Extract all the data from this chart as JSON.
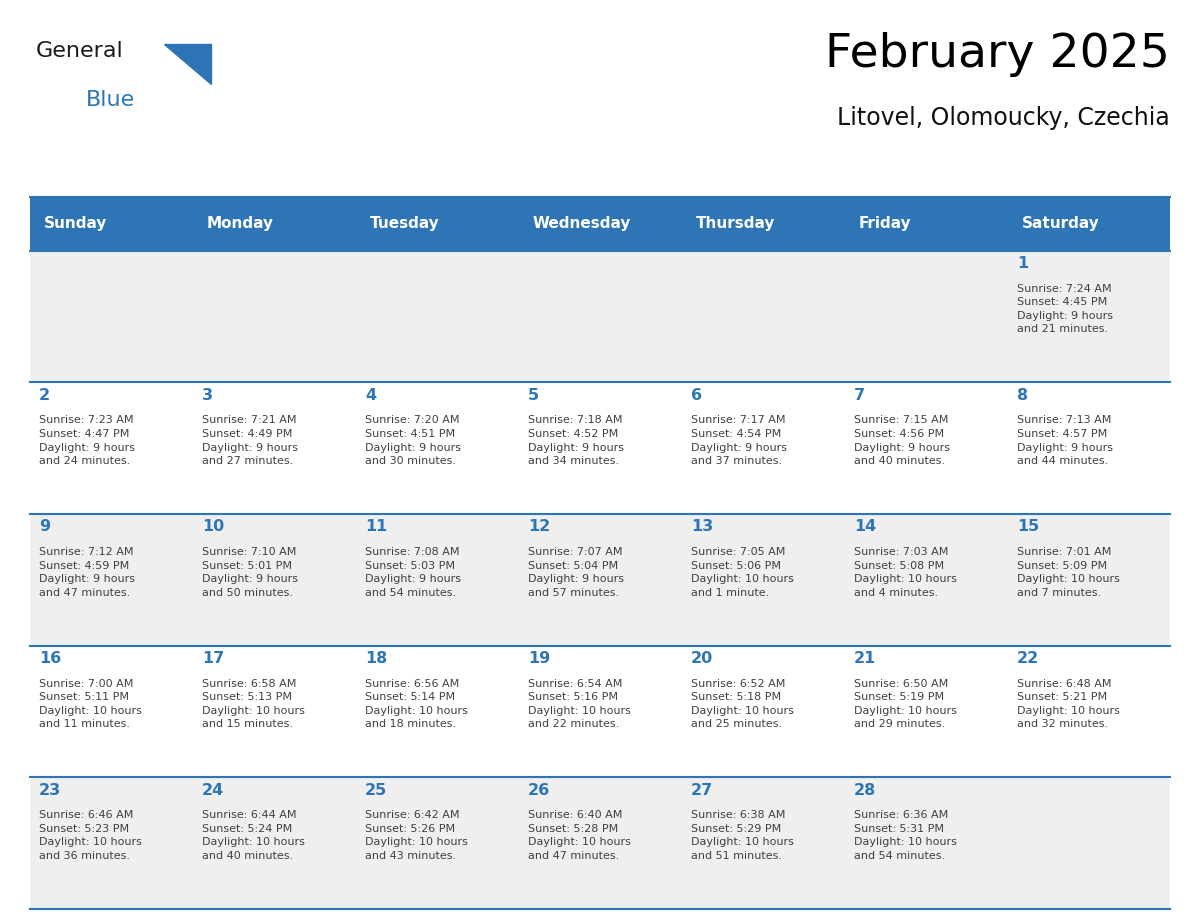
{
  "title": "February 2025",
  "subtitle": "Litovel, Olomoucky, Czechia",
  "header_bg": "#2E75B6",
  "header_text_color": "#FFFFFF",
  "row_bg_odd": "#EFEFEF",
  "row_bg_even": "#FFFFFF",
  "cell_border_color": "#2E75B6",
  "day_number_color": "#2E75B6",
  "info_text_color": "#404040",
  "days_of_week": [
    "Sunday",
    "Monday",
    "Tuesday",
    "Wednesday",
    "Thursday",
    "Friday",
    "Saturday"
  ],
  "weeks": [
    [
      {
        "day": "",
        "info": ""
      },
      {
        "day": "",
        "info": ""
      },
      {
        "day": "",
        "info": ""
      },
      {
        "day": "",
        "info": ""
      },
      {
        "day": "",
        "info": ""
      },
      {
        "day": "",
        "info": ""
      },
      {
        "day": "1",
        "info": "Sunrise: 7:24 AM\nSunset: 4:45 PM\nDaylight: 9 hours\nand 21 minutes."
      }
    ],
    [
      {
        "day": "2",
        "info": "Sunrise: 7:23 AM\nSunset: 4:47 PM\nDaylight: 9 hours\nand 24 minutes."
      },
      {
        "day": "3",
        "info": "Sunrise: 7:21 AM\nSunset: 4:49 PM\nDaylight: 9 hours\nand 27 minutes."
      },
      {
        "day": "4",
        "info": "Sunrise: 7:20 AM\nSunset: 4:51 PM\nDaylight: 9 hours\nand 30 minutes."
      },
      {
        "day": "5",
        "info": "Sunrise: 7:18 AM\nSunset: 4:52 PM\nDaylight: 9 hours\nand 34 minutes."
      },
      {
        "day": "6",
        "info": "Sunrise: 7:17 AM\nSunset: 4:54 PM\nDaylight: 9 hours\nand 37 minutes."
      },
      {
        "day": "7",
        "info": "Sunrise: 7:15 AM\nSunset: 4:56 PM\nDaylight: 9 hours\nand 40 minutes."
      },
      {
        "day": "8",
        "info": "Sunrise: 7:13 AM\nSunset: 4:57 PM\nDaylight: 9 hours\nand 44 minutes."
      }
    ],
    [
      {
        "day": "9",
        "info": "Sunrise: 7:12 AM\nSunset: 4:59 PM\nDaylight: 9 hours\nand 47 minutes."
      },
      {
        "day": "10",
        "info": "Sunrise: 7:10 AM\nSunset: 5:01 PM\nDaylight: 9 hours\nand 50 minutes."
      },
      {
        "day": "11",
        "info": "Sunrise: 7:08 AM\nSunset: 5:03 PM\nDaylight: 9 hours\nand 54 minutes."
      },
      {
        "day": "12",
        "info": "Sunrise: 7:07 AM\nSunset: 5:04 PM\nDaylight: 9 hours\nand 57 minutes."
      },
      {
        "day": "13",
        "info": "Sunrise: 7:05 AM\nSunset: 5:06 PM\nDaylight: 10 hours\nand 1 minute."
      },
      {
        "day": "14",
        "info": "Sunrise: 7:03 AM\nSunset: 5:08 PM\nDaylight: 10 hours\nand 4 minutes."
      },
      {
        "day": "15",
        "info": "Sunrise: 7:01 AM\nSunset: 5:09 PM\nDaylight: 10 hours\nand 7 minutes."
      }
    ],
    [
      {
        "day": "16",
        "info": "Sunrise: 7:00 AM\nSunset: 5:11 PM\nDaylight: 10 hours\nand 11 minutes."
      },
      {
        "day": "17",
        "info": "Sunrise: 6:58 AM\nSunset: 5:13 PM\nDaylight: 10 hours\nand 15 minutes."
      },
      {
        "day": "18",
        "info": "Sunrise: 6:56 AM\nSunset: 5:14 PM\nDaylight: 10 hours\nand 18 minutes."
      },
      {
        "day": "19",
        "info": "Sunrise: 6:54 AM\nSunset: 5:16 PM\nDaylight: 10 hours\nand 22 minutes."
      },
      {
        "day": "20",
        "info": "Sunrise: 6:52 AM\nSunset: 5:18 PM\nDaylight: 10 hours\nand 25 minutes."
      },
      {
        "day": "21",
        "info": "Sunrise: 6:50 AM\nSunset: 5:19 PM\nDaylight: 10 hours\nand 29 minutes."
      },
      {
        "day": "22",
        "info": "Sunrise: 6:48 AM\nSunset: 5:21 PM\nDaylight: 10 hours\nand 32 minutes."
      }
    ],
    [
      {
        "day": "23",
        "info": "Sunrise: 6:46 AM\nSunset: 5:23 PM\nDaylight: 10 hours\nand 36 minutes."
      },
      {
        "day": "24",
        "info": "Sunrise: 6:44 AM\nSunset: 5:24 PM\nDaylight: 10 hours\nand 40 minutes."
      },
      {
        "day": "25",
        "info": "Sunrise: 6:42 AM\nSunset: 5:26 PM\nDaylight: 10 hours\nand 43 minutes."
      },
      {
        "day": "26",
        "info": "Sunrise: 6:40 AM\nSunset: 5:28 PM\nDaylight: 10 hours\nand 47 minutes."
      },
      {
        "day": "27",
        "info": "Sunrise: 6:38 AM\nSunset: 5:29 PM\nDaylight: 10 hours\nand 51 minutes."
      },
      {
        "day": "28",
        "info": "Sunrise: 6:36 AM\nSunset: 5:31 PM\nDaylight: 10 hours\nand 54 minutes."
      },
      {
        "day": "",
        "info": ""
      }
    ]
  ],
  "logo_text1": "General",
  "logo_text2": "Blue",
  "logo_color1": "#1a1a1a",
  "logo_color2": "#2E75B6",
  "logo_triangle_color": "#2E75B6",
  "fig_width": 11.88,
  "fig_height": 9.18,
  "dpi": 100
}
